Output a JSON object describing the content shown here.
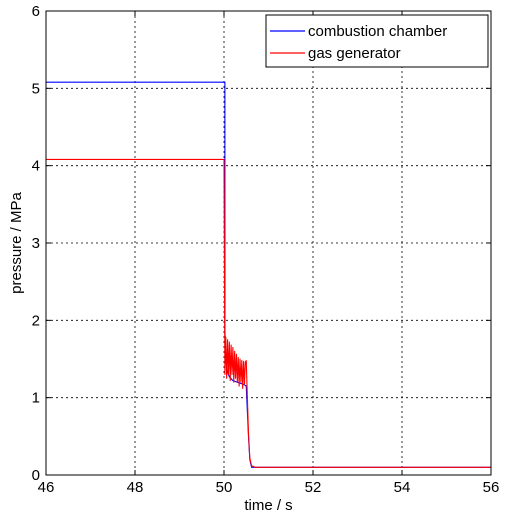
{
  "chart_data": {
    "type": "line",
    "title": "",
    "xlabel": "time / s",
    "ylabel": "pressure / MPa",
    "xlim": [
      46,
      56
    ],
    "ylim": [
      0,
      6
    ],
    "x_ticks": [
      46,
      48,
      50,
      52,
      54,
      56
    ],
    "y_ticks": [
      0,
      1,
      2,
      3,
      4,
      5,
      6
    ],
    "grid": true,
    "legend_position": "top-right",
    "series": [
      {
        "name": "combustion chamber",
        "color": "#0000ff",
        "x": [
          46,
          50.02,
          50.02,
          50.05,
          50.08,
          50.12,
          50.2,
          50.3,
          50.4,
          50.45,
          50.5,
          50.55,
          50.58,
          50.62,
          56
        ],
        "y": [
          5.08,
          5.08,
          1.85,
          1.45,
          1.33,
          1.27,
          1.22,
          1.2,
          1.18,
          1.17,
          1.15,
          0.5,
          0.2,
          0.1,
          0.1
        ]
      },
      {
        "name": "gas generator",
        "color": "#ff0000",
        "x": [
          46,
          50.0,
          50.02,
          50.04,
          50.06,
          50.08,
          50.1,
          50.12,
          50.14,
          50.16,
          50.18,
          50.2,
          50.22,
          50.24,
          50.26,
          50.28,
          50.3,
          50.32,
          50.34,
          50.36,
          50.38,
          50.4,
          50.42,
          50.44,
          50.46,
          50.48,
          50.5,
          50.52,
          50.55,
          50.58,
          50.62,
          50.7,
          56
        ],
        "y": [
          4.08,
          4.08,
          1.3,
          1.78,
          1.25,
          1.75,
          1.3,
          1.72,
          1.22,
          1.68,
          1.3,
          1.65,
          1.2,
          1.6,
          1.25,
          1.56,
          1.2,
          1.52,
          1.15,
          1.5,
          1.2,
          1.48,
          1.12,
          1.47,
          1.18,
          1.46,
          1.48,
          1.1,
          0.55,
          0.22,
          0.12,
          0.1,
          0.1
        ]
      }
    ]
  }
}
